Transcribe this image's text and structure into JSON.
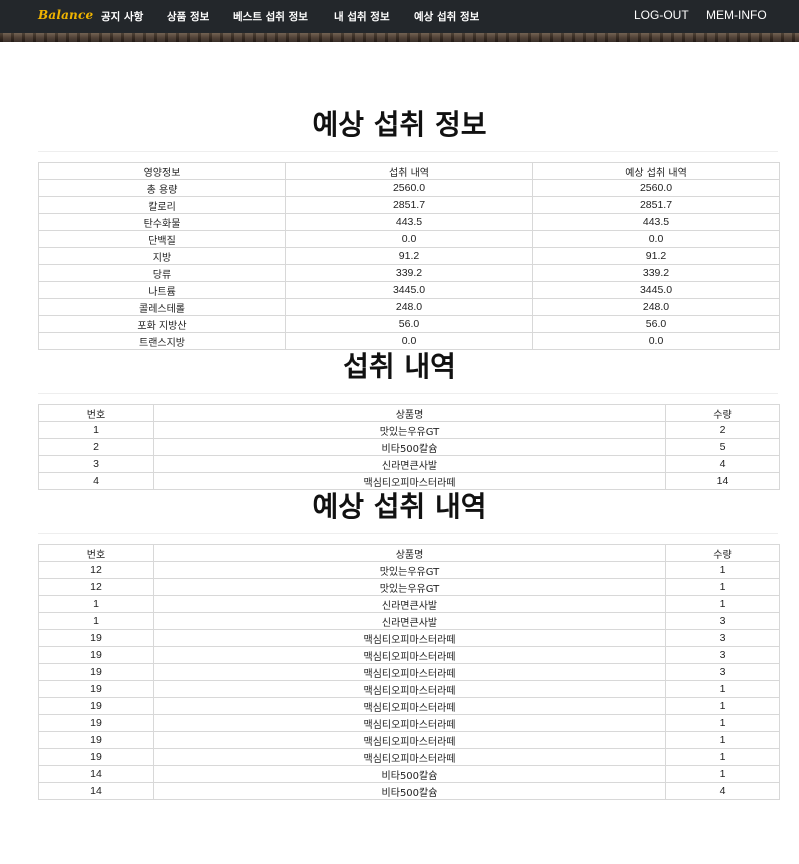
{
  "nav": {
    "brand": "Balance",
    "items": [
      "공지 사항",
      "상품 정보",
      "베스트 섭취 정보",
      "내 섭취 정보",
      "예상 섭취 정보"
    ],
    "right": [
      "LOG-OUT",
      "MEM-INFO"
    ]
  },
  "nutrition": {
    "title": "예상 섭취 정보",
    "headers": [
      "영양정보",
      "섭취 내역",
      "예상 섭취 내역"
    ],
    "rows": [
      [
        "총 용량",
        "2560.0",
        "2560.0"
      ],
      [
        "칼로리",
        "2851.7",
        "2851.7"
      ],
      [
        "탄수화물",
        "443.5",
        "443.5"
      ],
      [
        "단백질",
        "0.0",
        "0.0"
      ],
      [
        "지방",
        "91.2",
        "91.2"
      ],
      [
        "당류",
        "339.2",
        "339.2"
      ],
      [
        "나트륨",
        "3445.0",
        "3445.0"
      ],
      [
        "콜레스테롤",
        "248.0",
        "248.0"
      ],
      [
        "포화 지방산",
        "56.0",
        "56.0"
      ],
      [
        "트랜스지방",
        "0.0",
        "0.0"
      ]
    ]
  },
  "intake": {
    "title": "섭취 내역",
    "headers": [
      "번호",
      "상품명",
      "수량"
    ],
    "rows": [
      [
        "1",
        "맛있는우유GT",
        "2"
      ],
      [
        "2",
        "비타500칼슘",
        "5"
      ],
      [
        "3",
        "신라면큰사발",
        "4"
      ],
      [
        "4",
        "맥심티오피마스터라떼",
        "14"
      ]
    ]
  },
  "expected": {
    "title": "예상 섭취 내역",
    "headers": [
      "번호",
      "상품명",
      "수량"
    ],
    "rows": [
      [
        "12",
        "맛있는우유GT",
        "1"
      ],
      [
        "12",
        "맛있는우유GT",
        "1"
      ],
      [
        "1",
        "신라면큰사발",
        "1"
      ],
      [
        "1",
        "신라면큰사발",
        "3"
      ],
      [
        "19",
        "맥심티오피마스터라떼",
        "3"
      ],
      [
        "19",
        "맥심티오피마스터라떼",
        "3"
      ],
      [
        "19",
        "맥심티오피마스터라떼",
        "3"
      ],
      [
        "19",
        "맥심티오피마스터라떼",
        "1"
      ],
      [
        "19",
        "맥심티오피마스터라떼",
        "1"
      ],
      [
        "19",
        "맥심티오피마스터라떼",
        "1"
      ],
      [
        "19",
        "맥심티오피마스터라떼",
        "1"
      ],
      [
        "19",
        "맥심티오피마스터라떼",
        "1"
      ],
      [
        "14",
        "비타500칼슘",
        "1"
      ],
      [
        "14",
        "비타500칼슘",
        "4"
      ]
    ]
  }
}
